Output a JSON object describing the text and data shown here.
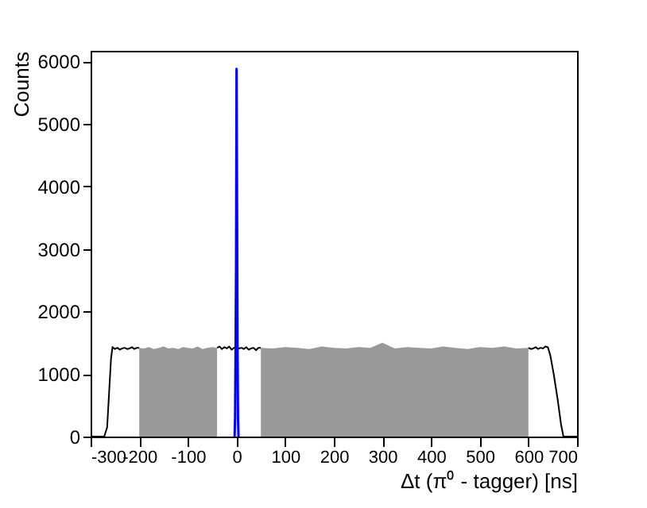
{
  "chart_data": {
    "type": "line",
    "xlabel": "Δt (π⁰ - tagger) [ns]",
    "ylabel": "Counts",
    "xlim": [
      -300,
      700
    ],
    "ylim": [
      0,
      6170
    ],
    "xticks": [
      -300,
      -200,
      -100,
      0,
      100,
      200,
      300,
      400,
      500,
      600,
      700
    ],
    "yticks": [
      0,
      1000,
      2000,
      3000,
      4000,
      5000,
      6000
    ],
    "grid": false,
    "series": [
      {
        "type": "area",
        "color": "#999999",
        "x": [
          -200,
          -190,
          -180,
          -170,
          -160,
          -150,
          -140,
          -130,
          -120,
          -110,
          -100,
          -90,
          -80,
          -70,
          -60,
          -50,
          -40
        ],
        "values": [
          1420,
          1410,
          1430,
          1400,
          1420,
          1440,
          1410,
          1420,
          1400,
          1430,
          1420,
          1410,
          1440,
          1400,
          1420,
          1430,
          1420
        ]
      },
      {
        "type": "area",
        "color": "#999999",
        "x": [
          50,
          75,
          100,
          125,
          150,
          175,
          200,
          225,
          250,
          275,
          300,
          325,
          350,
          375,
          400,
          425,
          450,
          475,
          500,
          525,
          550,
          575,
          600
        ],
        "values": [
          1420,
          1410,
          1430,
          1420,
          1400,
          1440,
          1420,
          1410,
          1430,
          1420,
          1500,
          1410,
          1430,
          1420,
          1410,
          1440,
          1420,
          1400,
          1430,
          1420,
          1440,
          1410,
          1420
        ]
      },
      {
        "type": "line",
        "color": "#000000",
        "x": [
          -300,
          -280,
          -272,
          -266,
          -262,
          -258,
          -255,
          -250,
          -245,
          -240,
          -235,
          -230,
          -225,
          -220,
          -215,
          -210,
          -205,
          -200
        ],
        "values": [
          0,
          0,
          0,
          150,
          700,
          1250,
          1430,
          1400,
          1420,
          1390,
          1410,
          1420,
          1400,
          1410,
          1430,
          1400,
          1420,
          1420
        ]
      },
      {
        "type": "line",
        "color": "#000000",
        "x": [
          -40,
          -35,
          -30,
          -25,
          -20,
          -15,
          -10,
          -5,
          0,
          5,
          10,
          15,
          20,
          25,
          30,
          35,
          40,
          45,
          50
        ],
        "values": [
          1420,
          1440,
          1400,
          1430,
          1410,
          1440,
          1390,
          1420,
          1430,
          1410,
          1420,
          1400,
          1430,
          1390,
          1410,
          1420,
          1380,
          1420,
          1420
        ]
      },
      {
        "type": "line",
        "color": "#000000",
        "x": [
          600,
          605,
          610,
          615,
          620,
          625,
          630,
          635,
          640,
          645,
          652,
          660,
          667,
          672,
          680,
          700
        ],
        "values": [
          1420,
          1400,
          1410,
          1430,
          1400,
          1420,
          1410,
          1440,
          1430,
          1300,
          1000,
          600,
          200,
          0,
          0,
          0
        ]
      },
      {
        "type": "line",
        "color": "#0000ff",
        "x": [
          -4,
          -3,
          -2,
          -1,
          0,
          1,
          2,
          3,
          4
        ],
        "values": [
          0,
          300,
          1400,
          2700,
          5880,
          3900,
          1500,
          300,
          0
        ]
      }
    ]
  }
}
